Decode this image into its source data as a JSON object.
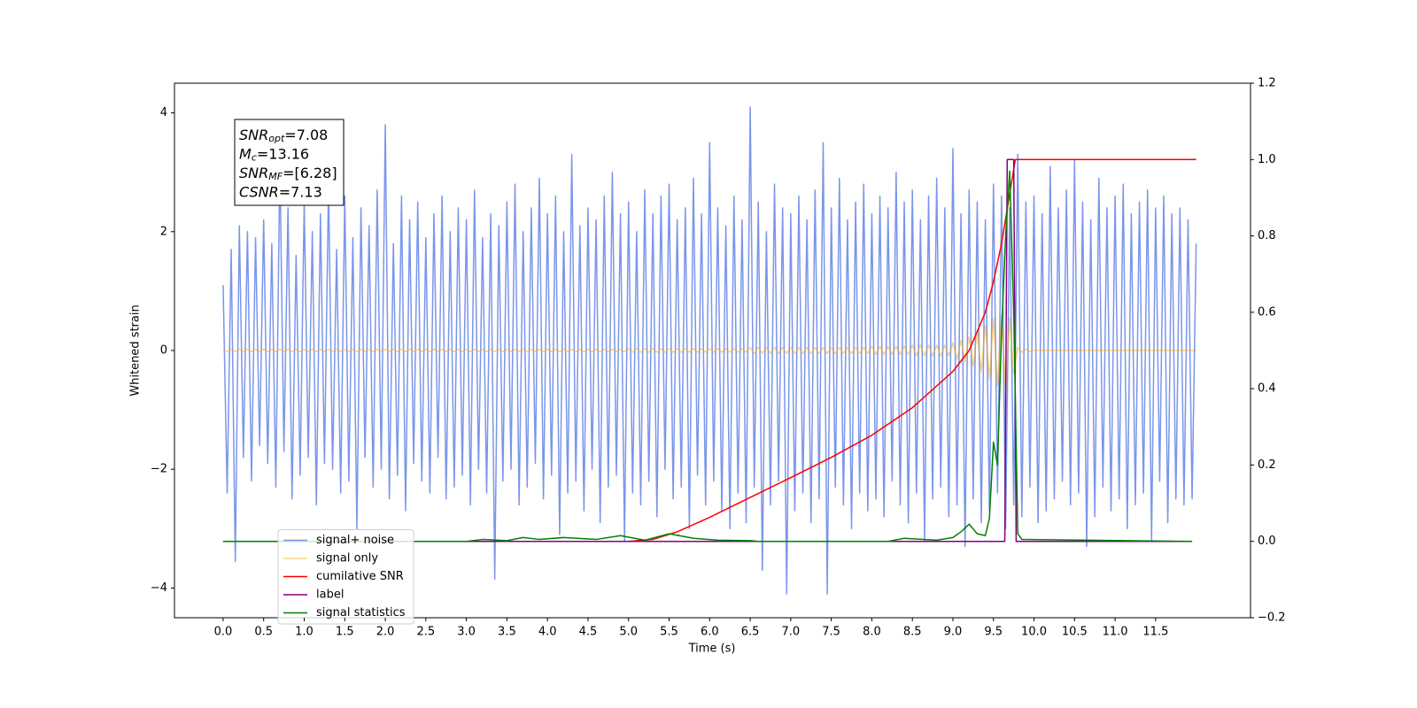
{
  "chart_data": {
    "type": "line",
    "xlabel": "Time (s)",
    "ylabel": "Whitened strain",
    "xlim": [
      -0.6,
      12.67
    ],
    "ylim": [
      -4.5,
      4.5
    ],
    "y2lim": [
      -0.2,
      1.2
    ],
    "xticks": [
      {
        "value": 0,
        "label": "0.0"
      },
      {
        "value": 0.5,
        "label": "0.5"
      },
      {
        "value": 1,
        "label": "1.0"
      },
      {
        "value": 1.5,
        "label": "1.5"
      },
      {
        "value": 2,
        "label": "2.0"
      },
      {
        "value": 2.5,
        "label": "2.5"
      },
      {
        "value": 3,
        "label": "3.0"
      },
      {
        "value": 3.5,
        "label": "3.5"
      },
      {
        "value": 4,
        "label": "4.0"
      },
      {
        "value": 4.5,
        "label": "4.5"
      },
      {
        "value": 5,
        "label": "5.0"
      },
      {
        "value": 5.5,
        "label": "5.5"
      },
      {
        "value": 6,
        "label": "6.0"
      },
      {
        "value": 6.5,
        "label": "6.5"
      },
      {
        "value": 7,
        "label": "7.0"
      },
      {
        "value": 7.5,
        "label": "7.5"
      },
      {
        "value": 8,
        "label": "8.0"
      },
      {
        "value": 8.5,
        "label": "8.5"
      },
      {
        "value": 9,
        "label": "9.0"
      },
      {
        "value": 9.5,
        "label": "9.5"
      },
      {
        "value": 10,
        "label": "10.0"
      },
      {
        "value": 10.5,
        "label": "10.5"
      },
      {
        "value": 11,
        "label": "11.0"
      },
      {
        "value": 11.5,
        "label": "11.5"
      }
    ],
    "yticks": [
      {
        "value": -4,
        "label": "−4"
      },
      {
        "value": -2,
        "label": "−2"
      },
      0,
      2,
      4
    ],
    "y2ticks": [
      {
        "value": -0.2,
        "label": "−0.2"
      },
      {
        "value": 0,
        "label": "0.0"
      },
      0.2,
      0.4,
      0.6,
      0.8,
      {
        "value": 1,
        "label": "1.0"
      },
      1.2
    ],
    "legend": "lower left",
    "annotation": [
      {
        "main": "SNR",
        "sub": "opt",
        "rest": "=7.08"
      },
      {
        "main": "M",
        "sub": "c",
        "rest": "=13.16"
      },
      {
        "main": "SNR",
        "sub": "MF",
        "rest": "=[6.28]"
      },
      {
        "main": "CSNR",
        "rest": "=7.13"
      }
    ],
    "x": [
      0,
      0.05,
      0.1,
      0.15,
      0.2,
      0.25,
      0.3,
      0.35,
      0.4,
      0.45,
      0.5,
      0.55,
      0.6,
      0.65,
      0.7,
      0.75,
      0.8,
      0.85,
      0.9,
      0.95,
      1,
      1.05,
      1.1,
      1.15,
      1.2,
      1.25,
      1.3,
      1.35,
      1.4,
      1.45,
      1.5,
      1.55,
      1.6,
      1.65,
      1.7,
      1.75,
      1.8,
      1.85,
      1.9,
      1.95,
      2,
      2.05,
      2.1,
      2.15,
      2.2,
      2.25,
      2.3,
      2.35,
      2.4,
      2.45,
      2.5,
      2.55,
      2.6,
      2.65,
      2.7,
      2.75,
      2.8,
      2.85,
      2.9,
      2.95,
      3,
      3.05,
      3.1,
      3.15,
      3.2,
      3.25,
      3.3,
      3.35,
      3.4,
      3.45,
      3.5,
      3.55,
      3.6,
      3.65,
      3.7,
      3.75,
      3.8,
      3.85,
      3.9,
      3.95,
      4,
      4.05,
      4.1,
      4.15,
      4.2,
      4.25,
      4.3,
      4.35,
      4.4,
      4.45,
      4.5,
      4.55,
      4.6,
      4.65,
      4.7,
      4.75,
      4.8,
      4.85,
      4.9,
      4.95,
      5,
      5.05,
      5.1,
      5.15,
      5.2,
      5.25,
      5.3,
      5.35,
      5.4,
      5.45,
      5.5,
      5.55,
      5.6,
      5.65,
      5.7,
      5.75,
      5.8,
      5.85,
      5.9,
      5.95,
      6,
      6.05,
      6.1,
      6.15,
      6.2,
      6.25,
      6.3,
      6.35,
      6.4,
      6.45,
      6.5,
      6.55,
      6.6,
      6.65,
      6.7,
      6.75,
      6.8,
      6.85,
      6.9,
      6.95,
      7,
      7.05,
      7.1,
      7.15,
      7.2,
      7.25,
      7.3,
      7.35,
      7.4,
      7.45,
      7.5,
      7.55,
      7.6,
      7.65,
      7.7,
      7.75,
      7.8,
      7.85,
      7.9,
      7.95,
      8,
      8.05,
      8.1,
      8.15,
      8.2,
      8.25,
      8.3,
      8.35,
      8.4,
      8.45,
      8.5,
      8.55,
      8.6,
      8.65,
      8.7,
      8.75,
      8.8,
      8.85,
      8.9,
      8.95,
      9,
      9.05,
      9.1,
      9.15,
      9.2,
      9.25,
      9.3,
      9.35,
      9.4,
      9.45,
      9.5,
      9.55,
      9.6,
      9.65,
      9.7,
      9.75,
      9.8,
      9.85,
      9.9,
      9.95,
      10,
      10.05,
      10.1,
      10.15,
      10.2,
      10.25,
      10.3,
      10.35,
      10.4,
      10.45,
      10.5,
      10.55,
      10.6,
      10.65,
      10.7,
      10.75,
      10.8,
      10.85,
      10.9,
      10.95,
      11,
      11.05,
      11.1,
      11.15,
      11.2,
      11.25,
      11.3,
      11.35,
      11.4,
      11.45,
      11.5,
      11.55,
      11.6,
      11.65,
      11.7,
      11.75,
      11.8,
      11.85,
      11.9,
      11.95,
      12
    ],
    "series": [
      {
        "name": "signal+ noise",
        "color": "#4169e1",
        "values": [
          1.1,
          -2.4,
          1.7,
          -3.55,
          2.1,
          -1.8,
          2.0,
          -2.2,
          1.9,
          -1.6,
          2.2,
          -1.9,
          1.8,
          -2.3,
          3.2,
          -1.7,
          2.4,
          -2.5,
          1.6,
          -2.1,
          2.5,
          -1.8,
          2.0,
          -2.6,
          2.3,
          -1.9,
          2.8,
          -2.0,
          1.7,
          -2.4,
          2.6,
          -2.2,
          1.9,
          -3.0,
          2.4,
          -1.8,
          2.1,
          -2.3,
          2.7,
          -2.0,
          3.8,
          -2.5,
          1.8,
          -2.1,
          2.6,
          -2.7,
          2.2,
          -1.9,
          2.5,
          -2.2,
          1.9,
          -2.4,
          2.3,
          -1.8,
          2.6,
          -2.5,
          2.0,
          -2.3,
          2.4,
          -2.1,
          2.2,
          -2.6,
          2.7,
          -2.0,
          1.9,
          -2.4,
          2.3,
          -3.85,
          2.1,
          -2.2,
          2.5,
          -2.0,
          2.8,
          -2.6,
          2.0,
          -2.3,
          2.4,
          -1.9,
          2.9,
          -2.5,
          2.3,
          -2.1,
          2.6,
          -3.1,
          2.0,
          -2.4,
          3.3,
          -2.2,
          2.1,
          -2.7,
          2.4,
          -2.0,
          2.2,
          -2.9,
          2.6,
          -2.3,
          3.0,
          -2.1,
          2.3,
          -3.2,
          2.5,
          -2.4,
          2.0,
          -2.6,
          2.7,
          -2.2,
          2.3,
          -2.8,
          2.6,
          -2.0,
          2.8,
          -2.5,
          2.2,
          -2.3,
          2.4,
          -3.0,
          2.9,
          -2.1,
          2.3,
          -2.6,
          3.5,
          -2.2,
          2.4,
          -2.7,
          2.1,
          -3.0,
          2.6,
          -2.4,
          2.2,
          -2.9,
          4.1,
          -2.3,
          2.5,
          -3.7,
          2.0,
          -2.6,
          2.8,
          -2.2,
          2.4,
          -4.1,
          2.3,
          -2.7,
          2.6,
          -2.4,
          2.2,
          -2.9,
          2.7,
          -2.5,
          3.5,
          -4.1,
          2.4,
          -2.3,
          2.9,
          -2.6,
          2.2,
          -3.0,
          2.5,
          -2.4,
          2.8,
          -2.7,
          2.3,
          -2.5,
          2.6,
          -2.8,
          2.4,
          -2.2,
          3.0,
          -2.6,
          2.5,
          -2.9,
          2.7,
          -2.4,
          2.2,
          -3.2,
          2.6,
          -2.5,
          2.9,
          -2.3,
          2.4,
          -2.8,
          3.4,
          -2.6,
          2.3,
          -3.3,
          2.7,
          -2.5,
          2.5,
          -2.9,
          2.2,
          -2.7,
          2.8,
          -2.4,
          2.6,
          -3.0,
          2.4,
          -2.6,
          3.3,
          -2.8,
          2.5,
          -2.3,
          2.6,
          -2.9,
          2.3,
          -2.7,
          3.1,
          -2.5,
          2.4,
          -2.2,
          2.7,
          -2.6,
          3.2,
          -2.4,
          2.5,
          -3.3,
          2.2,
          -2.8,
          2.9,
          -2.3,
          2.4,
          -2.7,
          2.6,
          -2.5,
          2.8,
          -3.0,
          2.3,
          -2.6,
          2.5,
          -2.4,
          2.7,
          -3.2,
          2.4,
          -2.2,
          2.6,
          -2.9,
          2.3,
          -2.5,
          2.4,
          -2.6,
          2.2,
          -2.5,
          1.8
        ]
      },
      {
        "name": "signal only",
        "color": "#ffa500",
        "values": [
          0.02,
          -0.02,
          0.02,
          -0.02,
          0.02,
          -0.02,
          0.02,
          -0.02,
          0.02,
          -0.02,
          0.02,
          -0.02,
          0.02,
          -0.02,
          0.02,
          -0.02,
          0.02,
          -0.02,
          0.02,
          -0.02,
          0.02,
          -0.02,
          0.02,
          -0.02,
          0.02,
          -0.02,
          0.02,
          -0.02,
          0.02,
          -0.02,
          0.02,
          -0.02,
          0.02,
          -0.02,
          0.02,
          -0.02,
          0.02,
          -0.02,
          0.02,
          -0.02,
          0.02,
          -0.02,
          0.02,
          -0.02,
          0.02,
          -0.02,
          0.02,
          -0.02,
          0.02,
          -0.02,
          0.02,
          -0.02,
          0.02,
          -0.02,
          0.02,
          -0.02,
          0.02,
          -0.02,
          0.02,
          -0.02,
          0.02,
          -0.02,
          0.02,
          -0.02,
          0.02,
          -0.02,
          0.02,
          -0.02,
          0.02,
          -0.02,
          0.02,
          -0.02,
          0.02,
          -0.02,
          0.02,
          -0.02,
          0.02,
          -0.02,
          0.02,
          -0.02,
          0.02,
          -0.02,
          0.02,
          -0.02,
          0.02,
          -0.02,
          0.02,
          -0.02,
          0.02,
          -0.02,
          0.02,
          -0.02,
          0.02,
          -0.02,
          0.02,
          -0.02,
          0.02,
          -0.02,
          0.02,
          -0.02,
          0.03,
          -0.03,
          0.03,
          -0.03,
          0.03,
          -0.03,
          0.03,
          -0.03,
          0.03,
          -0.03,
          0.03,
          -0.03,
          0.03,
          -0.03,
          0.03,
          -0.03,
          0.03,
          -0.03,
          0.03,
          -0.03,
          0.03,
          -0.03,
          0.03,
          -0.03,
          0.03,
          -0.03,
          0.03,
          -0.03,
          0.03,
          -0.03,
          0.05,
          -0.05,
          0.05,
          -0.05,
          0.05,
          -0.05,
          0.05,
          -0.05,
          0.05,
          -0.05,
          0.05,
          -0.05,
          0.05,
          -0.05,
          0.05,
          -0.05,
          0.05,
          -0.05,
          0.05,
          -0.05,
          0.05,
          -0.05,
          0.05,
          -0.05,
          0.05,
          -0.05,
          0.05,
          -0.05,
          0.05,
          -0.05,
          0.07,
          -0.07,
          0.07,
          -0.07,
          0.07,
          -0.07,
          0.07,
          -0.07,
          0.07,
          -0.07,
          0.09,
          -0.09,
          0.09,
          -0.09,
          0.09,
          -0.09,
          0.09,
          -0.09,
          0.09,
          -0.09,
          0.13,
          -0.15,
          0.17,
          -0.2,
          0.23,
          -0.27,
          0.31,
          -0.36,
          0.42,
          -0.48,
          0.55,
          -0.6,
          0.6,
          -0.65,
          0.55,
          -0.4,
          0.05,
          -0.03,
          0.02,
          -0.02,
          0,
          0,
          0,
          0,
          0,
          0,
          0,
          0,
          0,
          0,
          0,
          0,
          0,
          0,
          0,
          0,
          0,
          0,
          0,
          0,
          0,
          0,
          0,
          0,
          0,
          0,
          0,
          0,
          0,
          0,
          0,
          0,
          0,
          0,
          0,
          0,
          0,
          0,
          0,
          0,
          0
        ]
      },
      {
        "name": "cumilative SNR",
        "color": "#ff0000",
        "axis": "y2",
        "x": [
          0,
          5.0,
          5.3,
          5.6,
          6.0,
          6.5,
          7.0,
          7.5,
          8.0,
          8.5,
          9.0,
          9.2,
          9.4,
          9.5,
          9.6,
          9.7,
          9.77,
          12.0
        ],
        "values": [
          0,
          0,
          0.005,
          0.025,
          0.063,
          0.115,
          0.167,
          0.22,
          0.278,
          0.35,
          0.445,
          0.5,
          0.6,
          0.68,
          0.78,
          0.91,
          1.0,
          1.0
        ]
      },
      {
        "name": "label",
        "color": "#800080",
        "axis": "y2",
        "x": [
          0,
          9.64,
          9.67,
          9.75,
          9.78,
          11.95
        ],
        "values": [
          0,
          0,
          1,
          1,
          0,
          0
        ]
      },
      {
        "name": "signal statistics",
        "color": "#008000",
        "axis": "y2",
        "x": [
          0,
          3.0,
          3.2,
          3.5,
          3.7,
          3.9,
          4.2,
          4.6,
          4.9,
          5.2,
          5.5,
          5.8,
          6.1,
          6.5,
          6.6,
          8.2,
          8.4,
          8.8,
          9.0,
          9.1,
          9.2,
          9.3,
          9.4,
          9.45,
          9.5,
          9.55,
          9.6,
          9.65,
          9.7,
          9.75,
          9.8,
          9.85,
          11.95
        ],
        "values": [
          0,
          0,
          0.005,
          0.002,
          0.01,
          0.005,
          0.01,
          0.005,
          0.015,
          0.003,
          0.02,
          0.008,
          0.003,
          0.002,
          0,
          0,
          0.008,
          0.003,
          0.01,
          0.025,
          0.045,
          0.02,
          0.015,
          0.06,
          0.26,
          0.2,
          0.55,
          0.8,
          0.97,
          0.6,
          0.02,
          0.005,
          0
        ]
      }
    ]
  }
}
